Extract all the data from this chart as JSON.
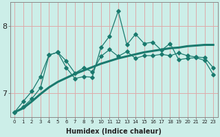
{
  "xlabel": "Humidex (Indice chaleur)",
  "background_color": "#cceee8",
  "grid_color": "#ddaaaa",
  "line_color": "#1a7a6e",
  "x_values": [
    0,
    1,
    2,
    3,
    4,
    5,
    6,
    7,
    8,
    9,
    10,
    11,
    12,
    13,
    14,
    15,
    16,
    17,
    18,
    19,
    20,
    21,
    22,
    23
  ],
  "line1": [
    6.72,
    6.78,
    6.88,
    6.99,
    7.09,
    7.17,
    7.23,
    7.29,
    7.34,
    7.39,
    7.44,
    7.48,
    7.52,
    7.55,
    7.58,
    7.61,
    7.63,
    7.65,
    7.67,
    7.68,
    7.7,
    7.71,
    7.72,
    7.72
  ],
  "line2": [
    6.72,
    6.8,
    6.92,
    7.08,
    7.57,
    7.61,
    7.48,
    7.3,
    7.38,
    7.32,
    7.55,
    7.65,
    7.55,
    7.62,
    7.52,
    7.56,
    7.56,
    7.58,
    7.56,
    7.6,
    7.56,
    7.54,
    7.53,
    7.38
  ],
  "line3": [
    6.72,
    6.88,
    7.03,
    7.25,
    7.57,
    7.61,
    7.38,
    7.22,
    7.25,
    7.24,
    7.68,
    7.85,
    8.22,
    7.72,
    7.88,
    7.74,
    7.76,
    7.64,
    7.74,
    7.5,
    7.52,
    7.53,
    7.49,
    7.28
  ],
  "ylim": [
    6.65,
    8.35
  ],
  "yticks": [
    7.0,
    8.0
  ],
  "xlim": [
    -0.5,
    23.5
  ]
}
